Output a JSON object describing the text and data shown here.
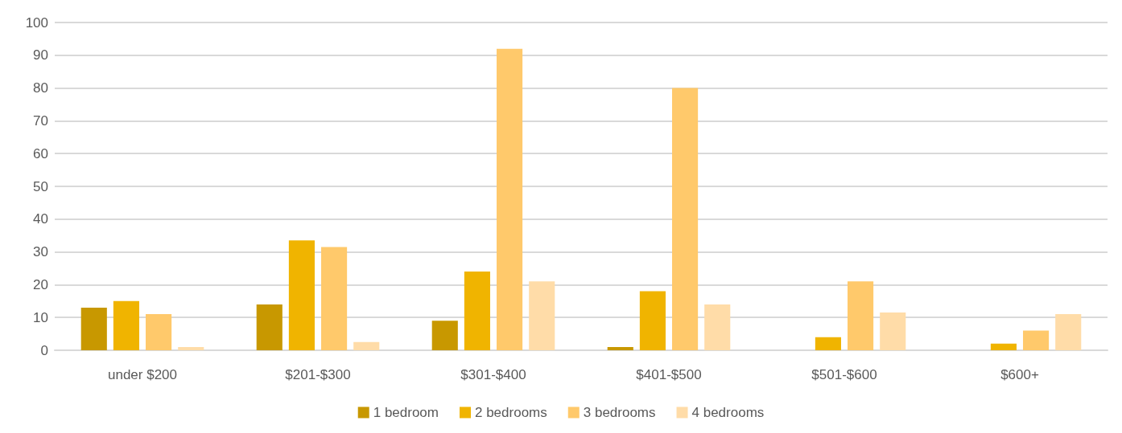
{
  "chart_data": {
    "type": "bar",
    "categories": [
      "under $200",
      "$201-$300",
      "$301-$400",
      "$401-$500",
      "$501-$600",
      "$600+"
    ],
    "series": [
      {
        "name": "1 bedroom",
        "color": "#c89800",
        "values": [
          13,
          14,
          9,
          1,
          0,
          0
        ]
      },
      {
        "name": "2 bedrooms",
        "color": "#f0b400",
        "values": [
          15,
          33.5,
          24,
          18,
          4,
          2
        ]
      },
      {
        "name": "3 bedrooms",
        "color": "#ffc96b",
        "values": [
          11,
          31.5,
          92,
          80,
          21,
          6
        ]
      },
      {
        "name": "4 bedrooms",
        "color": "#ffdca8",
        "values": [
          1,
          2.5,
          21,
          14,
          11.5,
          11
        ]
      }
    ],
    "ylim": [
      0,
      100
    ],
    "yticks": [
      0,
      10,
      20,
      30,
      40,
      50,
      60,
      70,
      80,
      90,
      100
    ],
    "grid": "y",
    "legend": "bottom"
  }
}
